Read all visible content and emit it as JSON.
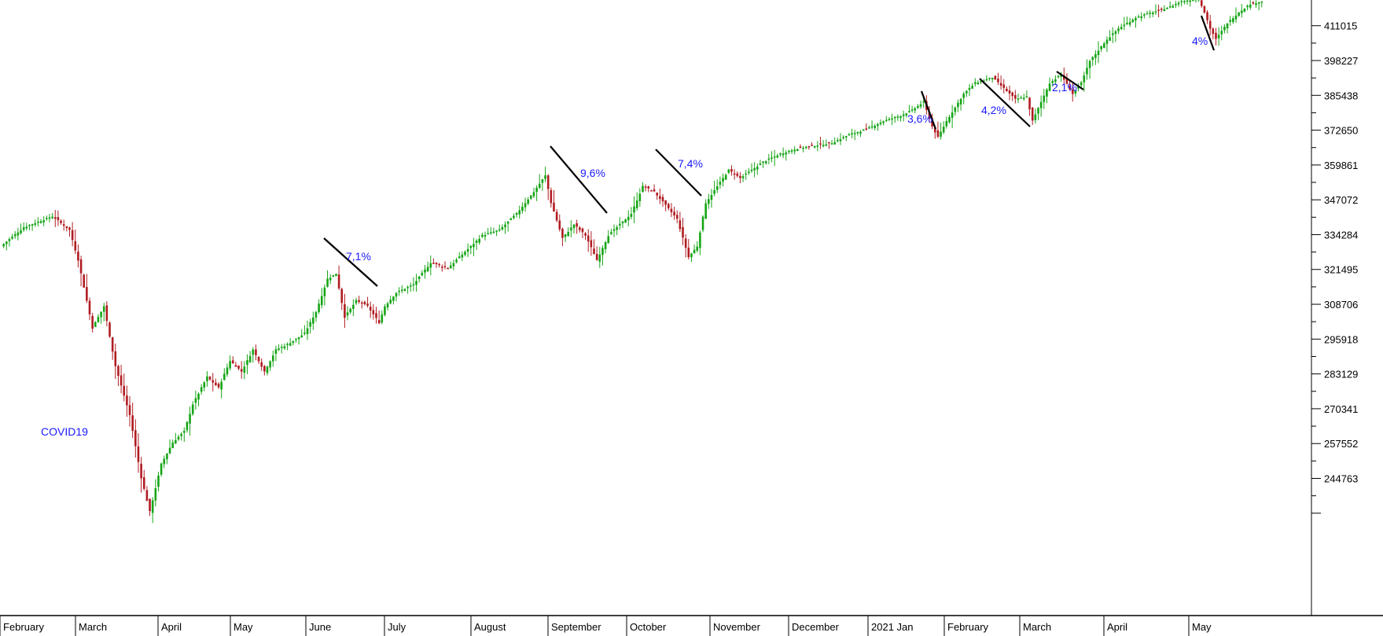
{
  "chart_data": {
    "type": "candlestick",
    "title": "",
    "xlabel": "",
    "ylabel": "",
    "ylim": [
      232000,
      425000
    ],
    "grid": false,
    "legend": "none",
    "y_ticks": [
      411015,
      398227,
      385438,
      372650,
      359861,
      347072,
      334284,
      321495,
      308706,
      295918,
      283129,
      270341,
      257552,
      244763
    ],
    "x_months": [
      "February",
      "March",
      "April",
      "May",
      "June",
      "July",
      "August",
      "September",
      "October",
      "November",
      "December",
      "2021 Jan",
      "February",
      "March",
      "April",
      "May"
    ],
    "anchors": [
      [
        0,
        330000
      ],
      [
        8,
        337000
      ],
      [
        18,
        341000
      ],
      [
        24,
        336000
      ],
      [
        27,
        325000
      ],
      [
        32,
        300000
      ],
      [
        36,
        308000
      ],
      [
        40,
        286000
      ],
      [
        45,
        268000
      ],
      [
        49,
        245000
      ],
      [
        52,
        232500
      ],
      [
        56,
        250000
      ],
      [
        60,
        258000
      ],
      [
        64,
        262000
      ],
      [
        67,
        272000
      ],
      [
        72,
        282000
      ],
      [
        76,
        278000
      ],
      [
        80,
        288000
      ],
      [
        84,
        284000
      ],
      [
        88,
        292000
      ],
      [
        92,
        284000
      ],
      [
        96,
        292000
      ],
      [
        100,
        294000
      ],
      [
        106,
        298000
      ],
      [
        110,
        306000
      ],
      [
        114,
        318000
      ],
      [
        117,
        320000
      ],
      [
        120,
        304000
      ],
      [
        124,
        310000
      ],
      [
        128,
        308000
      ],
      [
        132,
        302000
      ],
      [
        134,
        308000
      ],
      [
        138,
        313000
      ],
      [
        144,
        316000
      ],
      [
        150,
        324000
      ],
      [
        156,
        322000
      ],
      [
        162,
        328000
      ],
      [
        168,
        334000
      ],
      [
        174,
        336000
      ],
      [
        180,
        342000
      ],
      [
        186,
        350000
      ],
      [
        190,
        356000
      ],
      [
        192,
        346000
      ],
      [
        196,
        333000
      ],
      [
        200,
        338000
      ],
      [
        204,
        334000
      ],
      [
        208,
        325000
      ],
      [
        212,
        334000
      ],
      [
        216,
        338000
      ],
      [
        220,
        342000
      ],
      [
        224,
        352000
      ],
      [
        228,
        350000
      ],
      [
        232,
        345000
      ],
      [
        236,
        340000
      ],
      [
        240,
        326000
      ],
      [
        243,
        330000
      ],
      [
        246,
        346000
      ],
      [
        250,
        352000
      ],
      [
        254,
        358000
      ],
      [
        258,
        355000
      ],
      [
        262,
        358000
      ],
      [
        266,
        361000
      ],
      [
        272,
        364000
      ],
      [
        278,
        366000
      ],
      [
        284,
        367000
      ],
      [
        290,
        368000
      ],
      [
        296,
        371000
      ],
      [
        302,
        373000
      ],
      [
        308,
        376000
      ],
      [
        314,
        378000
      ],
      [
        318,
        380000
      ],
      [
        322,
        383000
      ],
      [
        325,
        374000
      ],
      [
        327,
        370000
      ],
      [
        330,
        376000
      ],
      [
        336,
        386000
      ],
      [
        340,
        390000
      ],
      [
        346,
        392000
      ],
      [
        350,
        388000
      ],
      [
        354,
        384000
      ],
      [
        358,
        385000
      ],
      [
        360,
        376000
      ],
      [
        363,
        383000
      ],
      [
        366,
        390000
      ],
      [
        370,
        393000
      ],
      [
        374,
        386000
      ],
      [
        377,
        390000
      ],
      [
        380,
        398000
      ],
      [
        386,
        406000
      ],
      [
        390,
        410000
      ],
      [
        396,
        414000
      ],
      [
        402,
        416000
      ],
      [
        408,
        418000
      ],
      [
        412,
        420000
      ],
      [
        418,
        421000
      ],
      [
        420,
        416000
      ],
      [
        422,
        410000
      ],
      [
        424,
        406000
      ],
      [
        428,
        412000
      ],
      [
        432,
        416000
      ],
      [
        436,
        419000
      ],
      [
        440,
        420000
      ]
    ]
  },
  "labels": {
    "covid": "COVID19",
    "drops": [
      "7,1%",
      "9,6%",
      "7,4%",
      "3,6%",
      "4,2%",
      "2,1%",
      "4%"
    ]
  },
  "colors": {
    "up": "#16a516",
    "down": "#b01c22",
    "annotation_text": "#1a1aff",
    "trend_line": "#000000",
    "axis": "#000000"
  }
}
